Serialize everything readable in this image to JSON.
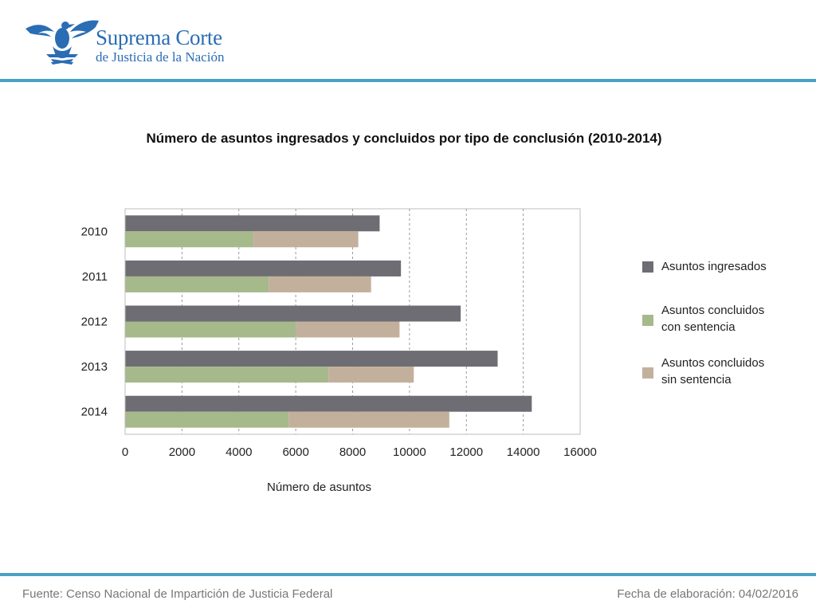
{
  "header": {
    "org_line1": "Suprema Corte",
    "org_line2": "de Justicia de la Nación"
  },
  "footer": {
    "source": "Fuente: Censo Nacional de Impartición de Justicia Federal",
    "date": "Fecha de elaboración: 04/02/2016"
  },
  "colors": {
    "rule": "#4aa0c6",
    "ingresados": "#6e6d73",
    "con_sentencia": "#a5b98a",
    "sin_sentencia": "#c3b09c",
    "brand": "#2a6db4"
  },
  "chart_data": {
    "type": "bar",
    "orientation": "horizontal",
    "title": "Número de asuntos ingresados y concluidos por tipo de conclusión (2010-2014)",
    "xlabel": "Número de asuntos",
    "ylabel": "",
    "xlim": [
      0,
      16000
    ],
    "xticks": [
      "0",
      "2000",
      "4000",
      "6000",
      "8000",
      "10000",
      "12000",
      "14000",
      "16000"
    ],
    "categories": [
      "2010",
      "2011",
      "2012",
      "2013",
      "2014"
    ],
    "grid": "vertical dashed",
    "legend_position": "right",
    "series": [
      {
        "name": "Asuntos ingresados",
        "values": [
          8950,
          9700,
          11800,
          13100,
          14300
        ],
        "stack": "ingresados"
      },
      {
        "name": "Asuntos concluidos con sentencia",
        "values": [
          4500,
          5050,
          6000,
          7150,
          5750
        ],
        "stack": "concluidos"
      },
      {
        "name": "Asuntos concluidos sin sentencia",
        "values": [
          3700,
          3600,
          3650,
          3000,
          5650
        ],
        "stack": "concluidos"
      }
    ],
    "legend": [
      {
        "line1": "Asuntos ingresados",
        "line2": ""
      },
      {
        "line1": "Asuntos concluidos",
        "line2": "con sentencia"
      },
      {
        "line1": "Asuntos concluidos",
        "line2": "sin sentencia"
      }
    ]
  }
}
